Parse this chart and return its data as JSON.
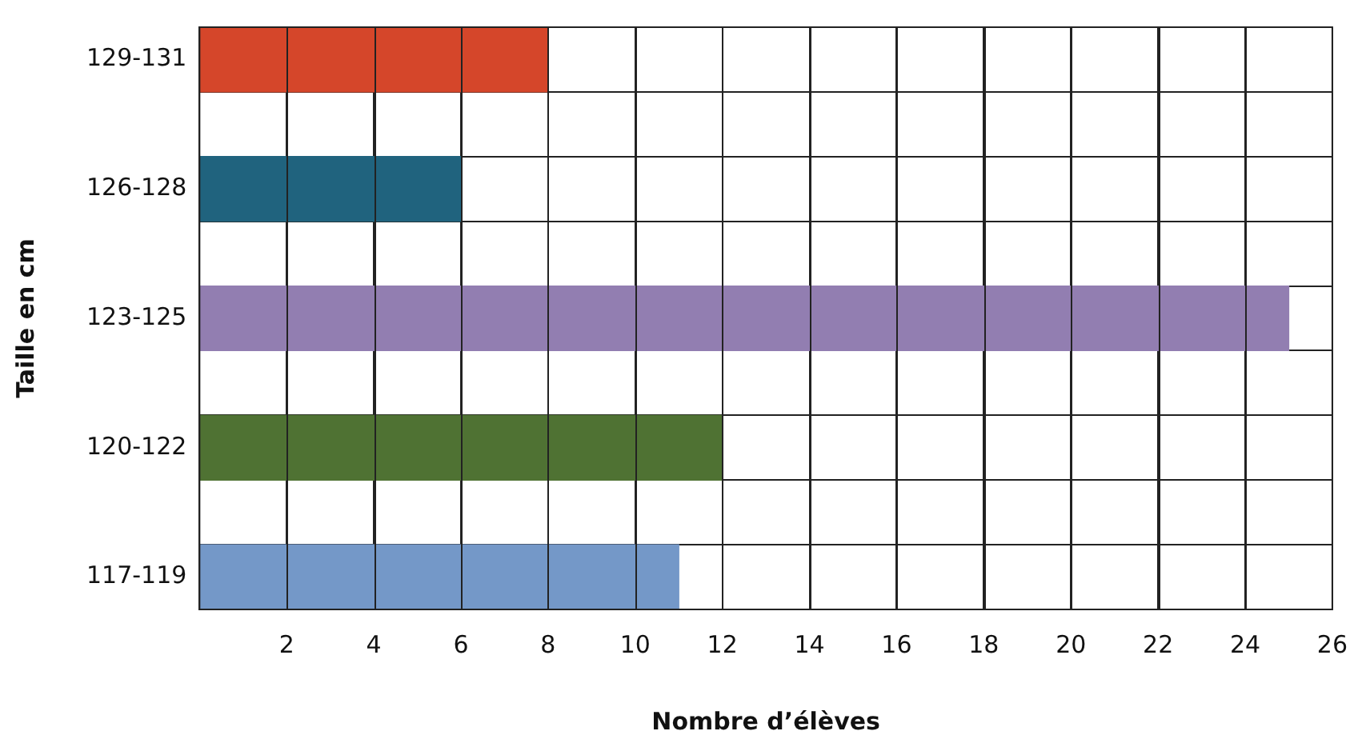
{
  "chart_data": {
    "type": "bar",
    "orientation": "horizontal",
    "xlabel": "Nombre d’élèves",
    "ylabel": "Taille en cm",
    "categories": [
      "129-131",
      null,
      "126-128",
      null,
      "123-125",
      null,
      "120-122",
      null,
      "117-119"
    ],
    "values": [
      8,
      null,
      6,
      null,
      25,
      null,
      12,
      null,
      11
    ],
    "colors": [
      "#d5462a",
      "#000000",
      "#20637e",
      "#000000",
      "#927eb1",
      "#000000",
      "#4f7233",
      "#000000",
      "#7498c8"
    ],
    "xlim": [
      0,
      26
    ],
    "xticks": [
      2,
      4,
      6,
      8,
      10,
      12,
      14,
      16,
      18,
      20,
      22,
      24,
      26
    ],
    "grid": true,
    "legend": false
  }
}
